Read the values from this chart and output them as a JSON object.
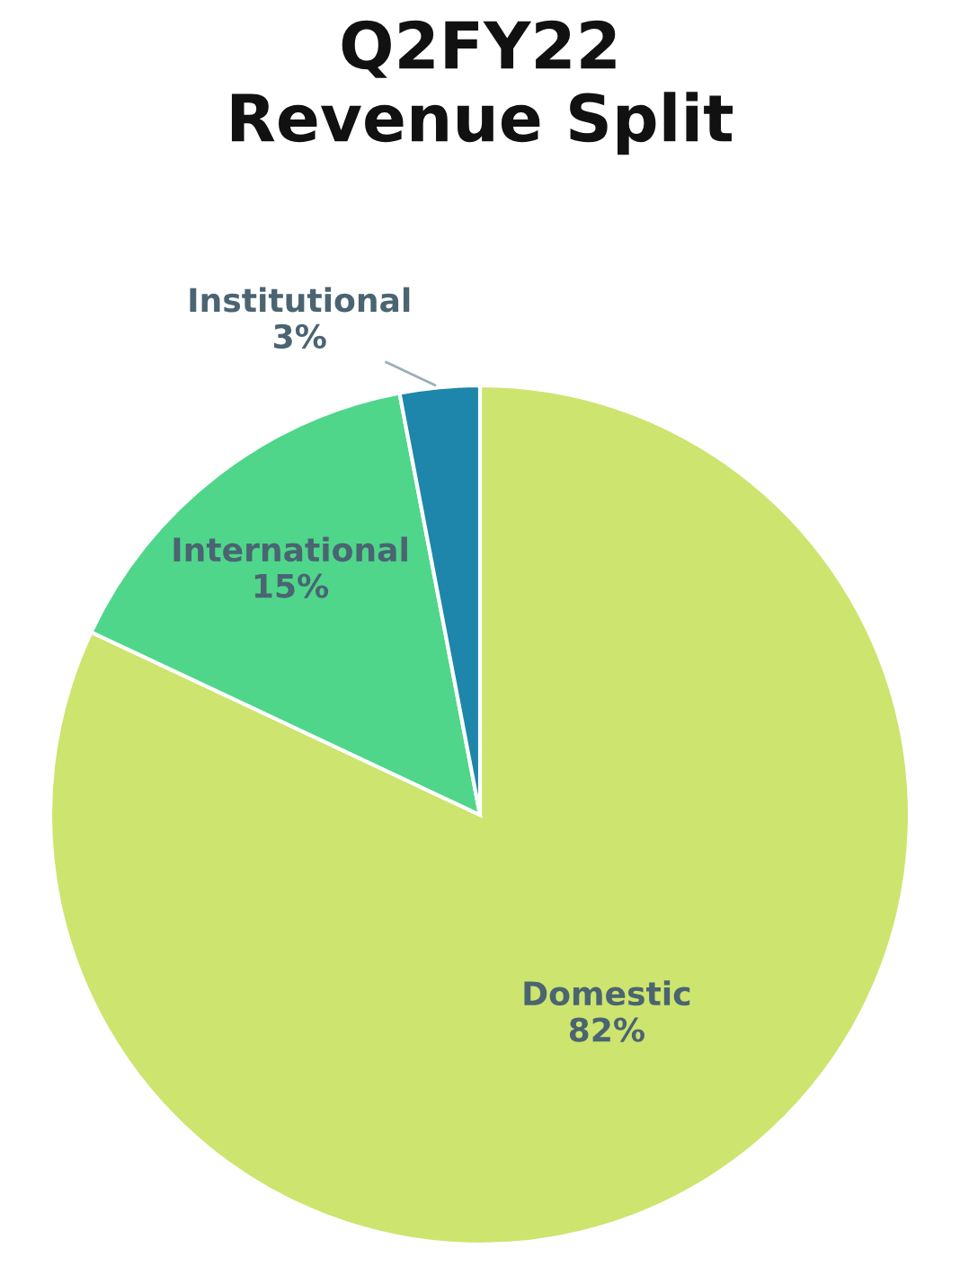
{
  "chart_data": {
    "type": "pie",
    "title": "Q2FY22\nRevenue Split",
    "categories": [
      "Domestic",
      "International",
      "Institutional"
    ],
    "values": [
      82,
      15,
      3
    ],
    "colors": [
      "#cde46e",
      "#4fd68a",
      "#1e86aa"
    ],
    "value_labels": [
      "82%",
      "15%",
      "3%"
    ]
  }
}
